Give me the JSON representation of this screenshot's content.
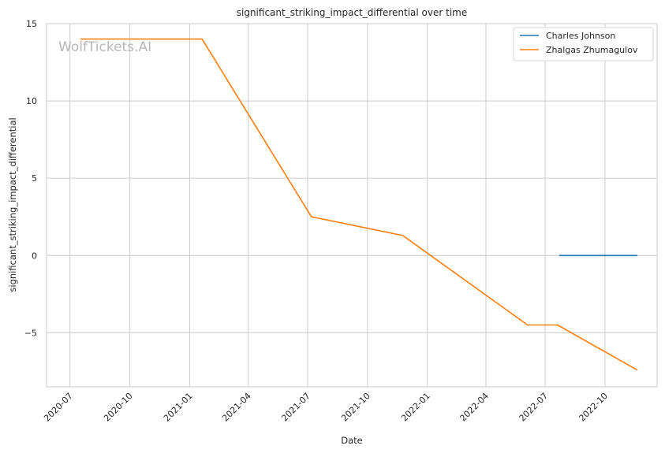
{
  "chart_data": {
    "type": "line",
    "title": "significant_striking_impact_differential over time",
    "xlabel": "Date",
    "ylabel": "significant_striking_impact_differential",
    "watermark": "WolfTickets.AI",
    "x_ticks": [
      "2020-07",
      "2020-10",
      "2021-01",
      "2021-04",
      "2021-07",
      "2021-10",
      "2022-01",
      "2022-04",
      "2022-07",
      "2022-10"
    ],
    "y_ticks": [
      15,
      10,
      5,
      0,
      -5
    ],
    "y_tick_labels": [
      "15",
      "10",
      "5",
      "0",
      "−5"
    ],
    "xlim": [
      "2020-05-26",
      "2022-12-20"
    ],
    "ylim": [
      -8.5,
      15
    ],
    "grid": true,
    "legend_position": "upper right",
    "series": [
      {
        "name": "Charles Johnson",
        "color": "#1f77b4",
        "points": [
          {
            "x": "2022-07-23",
            "y": 0
          },
          {
            "x": "2022-11-19",
            "y": 0
          }
        ]
      },
      {
        "name": "Zhalgas Zhumagulov",
        "color": "#ff7f0e",
        "points": [
          {
            "x": "2020-07-18",
            "y": 14
          },
          {
            "x": "2021-01-20",
            "y": 14
          },
          {
            "x": "2021-07-07",
            "y": 2.5
          },
          {
            "x": "2021-11-24",
            "y": 1.3
          },
          {
            "x": "2022-06-04",
            "y": -4.5
          },
          {
            "x": "2022-07-20",
            "y": -4.5
          },
          {
            "x": "2022-11-19",
            "y": -7.4
          }
        ]
      }
    ]
  }
}
